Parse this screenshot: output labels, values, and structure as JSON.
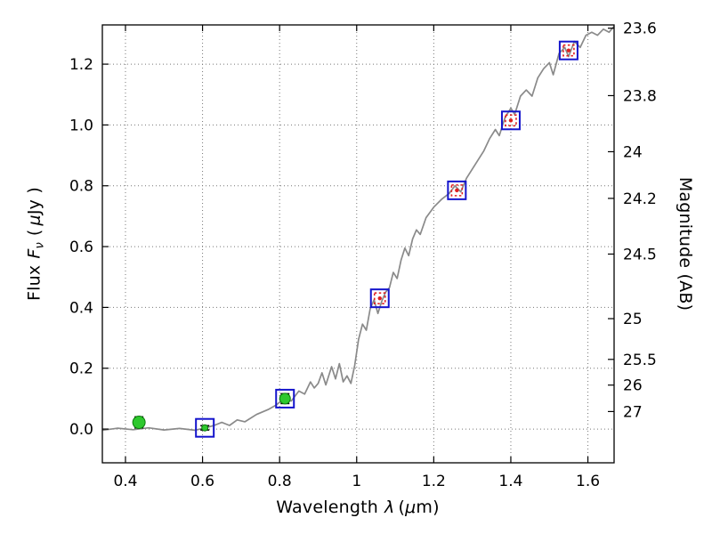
{
  "figure": {
    "background": "#ffffff"
  },
  "labels": {
    "x": {
      "word": "Wavelength",
      "symbol": "λ",
      "open": "(",
      "mu": "μ",
      "close": "m)"
    },
    "y": {
      "word": "Flux",
      "symbol": "F",
      "sub": "ν",
      "open": "(",
      "mu": "μ",
      "close": "Jy )"
    },
    "y2": "Magnitude (AB)"
  },
  "chart_data": {
    "type": "line",
    "title": "",
    "xlabel": "Wavelength λ (μm)",
    "ylabel": "Flux Fν ( μJy )",
    "y2label": "Magnitude (AB)",
    "grid": true,
    "legend": "none",
    "axes": {
      "x": {
        "min": 0.34,
        "max": 1.668,
        "ticks": [
          0.4,
          0.6,
          0.8,
          1,
          1.2,
          1.4,
          1.6
        ],
        "tick_labels": [
          "0.4",
          "0.6",
          "0.8",
          "1",
          "1.2",
          "1.4",
          "1.6"
        ]
      },
      "y": {
        "min": -0.111,
        "max": 1.329,
        "ticks": [
          0,
          0.2,
          0.4,
          0.6,
          0.8,
          1.0,
          1.2
        ],
        "tick_labels": [
          "0.0",
          "0.2",
          "0.4",
          "0.6",
          "0.8",
          "1.0",
          "1.2"
        ]
      },
      "y2": {
        "zeropoint": 23.9,
        "ticks": [
          23.6,
          23.8,
          24,
          24.2,
          24.5,
          25,
          25.5,
          26,
          27
        ],
        "tick_labels": [
          "23.6",
          "23.8",
          "24",
          "24.2",
          "24.5",
          "25",
          "25.5",
          "26",
          "27"
        ]
      }
    },
    "colors": {
      "spectrum": "#8a8a8a",
      "grid": "#777777",
      "frame": "#000000",
      "blue_square": "#1414cc",
      "red_square": "#e02020",
      "green_circle": "#2ec82e",
      "green_edge": "#0a7a0a",
      "errorbar": "#000000"
    },
    "spectrum": {
      "name": "model-spectrum-line",
      "x": [
        0.34,
        0.38,
        0.42,
        0.46,
        0.5,
        0.54,
        0.58,
        0.61,
        0.63,
        0.65,
        0.67,
        0.69,
        0.71,
        0.74,
        0.77,
        0.79,
        0.81,
        0.83,
        0.85,
        0.865,
        0.88,
        0.89,
        0.9,
        0.91,
        0.92,
        0.935,
        0.945,
        0.955,
        0.965,
        0.975,
        0.985,
        0.995,
        1.005,
        1.015,
        1.025,
        1.035,
        1.045,
        1.055,
        1.065,
        1.075,
        1.085,
        1.095,
        1.105,
        1.115,
        1.125,
        1.135,
        1.145,
        1.155,
        1.165,
        1.18,
        1.2,
        1.22,
        1.24,
        1.255,
        1.27,
        1.285,
        1.3,
        1.315,
        1.33,
        1.345,
        1.36,
        1.37,
        1.385,
        1.4,
        1.41,
        1.425,
        1.44,
        1.455,
        1.47,
        1.485,
        1.5,
        1.51,
        1.525,
        1.54,
        1.55,
        1.565,
        1.58,
        1.595,
        1.61,
        1.625,
        1.64,
        1.655,
        1.668
      ],
      "y": [
        -0.004,
        0.003,
        -0.002,
        0.004,
        -0.003,
        0.002,
        -0.004,
        0.005,
        0.012,
        0.022,
        0.012,
        0.03,
        0.024,
        0.048,
        0.064,
        0.078,
        0.098,
        0.092,
        0.125,
        0.115,
        0.155,
        0.135,
        0.15,
        0.185,
        0.145,
        0.205,
        0.165,
        0.215,
        0.155,
        0.175,
        0.15,
        0.21,
        0.295,
        0.345,
        0.325,
        0.395,
        0.425,
        0.38,
        0.42,
        0.45,
        0.465,
        0.515,
        0.495,
        0.555,
        0.595,
        0.57,
        0.625,
        0.655,
        0.64,
        0.695,
        0.73,
        0.755,
        0.775,
        0.8,
        0.78,
        0.825,
        0.855,
        0.885,
        0.915,
        0.955,
        0.985,
        0.965,
        1.025,
        1.055,
        1.035,
        1.095,
        1.115,
        1.095,
        1.155,
        1.185,
        1.205,
        1.165,
        1.235,
        1.255,
        1.225,
        1.275,
        1.255,
        1.295,
        1.305,
        1.295,
        1.315,
        1.305,
        1.325
      ]
    },
    "series": [
      {
        "name": "model-photometry-squares",
        "marker": "open-square",
        "size": 20,
        "points": [
          {
            "x": 0.606,
            "y": 0.004
          },
          {
            "x": 0.814,
            "y": 0.1
          },
          {
            "x": 1.06,
            "y": 0.43
          },
          {
            "x": 1.26,
            "y": 0.785
          },
          {
            "x": 1.4,
            "y": 1.015
          },
          {
            "x": 1.55,
            "y": 1.245
          }
        ]
      },
      {
        "name": "band-flux-dotted-squares",
        "marker": "dotted-square",
        "size": 12,
        "points": [
          {
            "x": 1.06,
            "y": 0.43
          },
          {
            "x": 1.26,
            "y": 0.785
          },
          {
            "x": 1.4,
            "y": 1.015
          },
          {
            "x": 1.55,
            "y": 1.245
          }
        ]
      },
      {
        "name": "observed-photometry-circles",
        "marker": "circle",
        "points": [
          {
            "x": 0.435,
            "y": 0.022,
            "err": 0.018,
            "r": 7
          },
          {
            "x": 0.606,
            "y": 0.004,
            "err": 0.007,
            "r": 3.5
          },
          {
            "x": 0.814,
            "y": 0.1,
            "err": 0.016,
            "r": 6
          }
        ]
      }
    ]
  }
}
